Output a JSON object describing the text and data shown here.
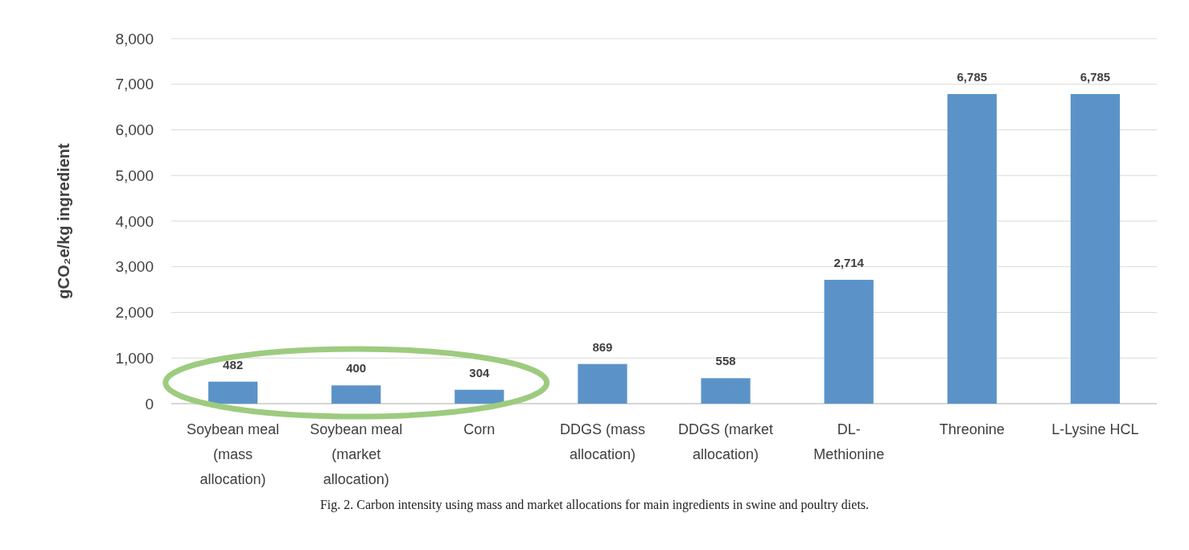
{
  "chart_data": {
    "type": "bar",
    "categories": [
      "Soybean meal (mass allocation)",
      "Soybean meal (market allocation)",
      "Corn",
      "DDGS (mass allocation)",
      "DDGS (market allocation)",
      "DL-Methionine",
      "Threonine",
      "L-Lysine HCL"
    ],
    "values": [
      482,
      400,
      304,
      869,
      558,
      2714,
      6785,
      6785
    ],
    "color": "#5b93c8",
    "ylabel": "gCO₂e/kg ingredient",
    "ylim": [
      0,
      8000
    ],
    "yticks": [
      0,
      {
        "value": 1000,
        "label": "1,000"
      },
      {
        "value": 2000,
        "label": "2,000"
      },
      {
        "value": 3000,
        "label": "3,000"
      },
      {
        "value": 4000,
        "label": "4,000"
      },
      {
        "value": 5000,
        "label": "5,000"
      },
      {
        "value": 6000,
        "label": "6,000"
      },
      {
        "value": 7000,
        "label": "7,000"
      },
      {
        "value": 8000,
        "label": "8,000"
      }
    ],
    "grid": "y",
    "data_labels": true,
    "value_labels": [
      "482",
      "400",
      "304",
      "869",
      "558",
      "2,714",
      "6,785",
      "6,785"
    ],
    "annotations": [
      "Fig. 2. Carbon intensity using mass and market allocations for main ingredients in swine and poultry diets."
    ]
  }
}
